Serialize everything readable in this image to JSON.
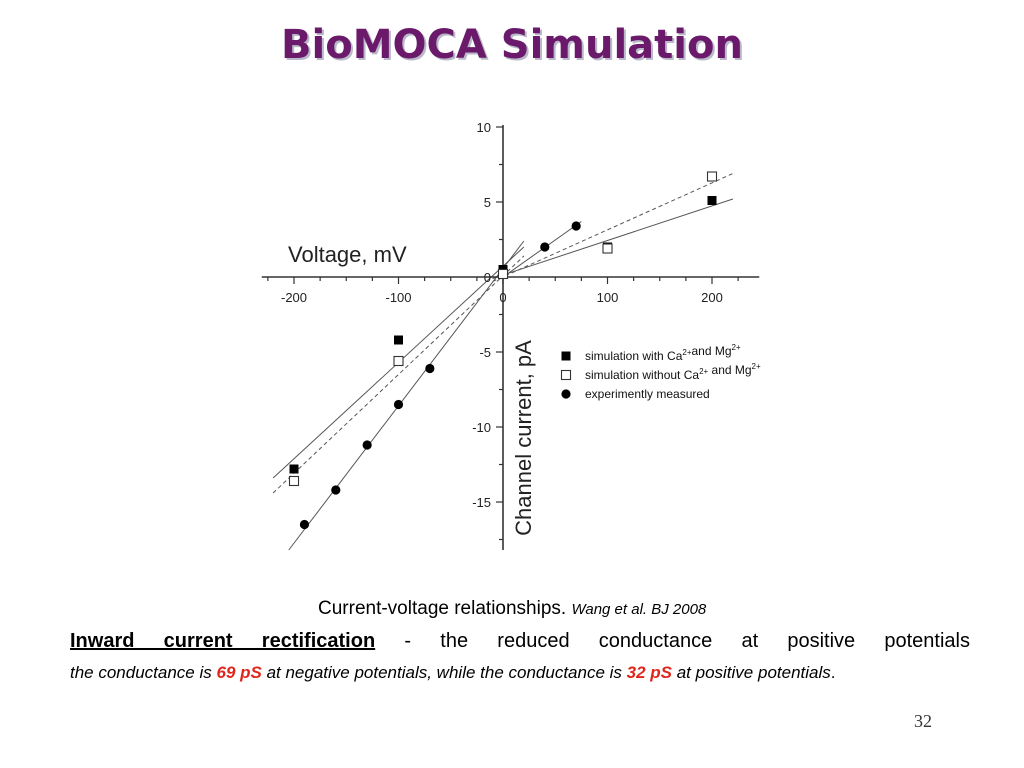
{
  "slide": {
    "title": "BioMOCA Simulation",
    "caption_main": "Current-voltage relationships.",
    "caption_cite": "Wang et al. BJ 2008",
    "rectification_heading": "Inward current rectification",
    "rectification_dash": " - ",
    "rectification_text": "the reduced conductance at positive potentials",
    "conductance_part1": "the conductance is ",
    "conductance_value_negative": "69 pS",
    "conductance_part2": " at negative potentials, while the conductance is ",
    "conductance_value_positive": "32 pS",
    "conductance_part3": " at positive potentials",
    "conductance_end": ".",
    "page_number": "32",
    "colors": {
      "title": "#6b1a6b",
      "highlight": "#e0261b"
    }
  },
  "chart_data": {
    "type": "scatter",
    "xlabel": "Voltage, mV",
    "ylabel": "Channel current, pA",
    "xlim": [
      -250,
      250
    ],
    "ylim": [
      -18,
      10
    ],
    "x_ticks": [
      -200,
      -100,
      0,
      100,
      200
    ],
    "y_ticks": [
      10,
      5,
      0,
      -5,
      -10,
      -15
    ],
    "axes_style": "cross-at-origin",
    "grid": false,
    "legend_position": "lower-right",
    "series": [
      {
        "name": "simulation with Ca2+ and Mg2+",
        "marker": "filled-square",
        "x": [
          -200,
          -100,
          0,
          100,
          200
        ],
        "y": [
          -12.8,
          -4.2,
          0.5,
          2.0,
          5.1
        ]
      },
      {
        "name": "simulation without Ca2+ and Mg2+",
        "marker": "open-square",
        "x": [
          -200,
          -100,
          0,
          100,
          200
        ],
        "y": [
          -13.6,
          -5.6,
          0.2,
          1.9,
          6.7
        ]
      },
      {
        "name": "experimently measured",
        "marker": "filled-circle",
        "x": [
          -190,
          -160,
          -130,
          -100,
          -70,
          40,
          70
        ],
        "y": [
          -16.5,
          -14.2,
          -11.2,
          -8.5,
          -6.1,
          2.0,
          3.4
        ]
      }
    ],
    "fit_lines": [
      {
        "style": "solid",
        "x": [
          -220,
          20
        ],
        "y": [
          -13.4,
          2.0
        ]
      },
      {
        "style": "dashed",
        "x": [
          -220,
          20
        ],
        "y": [
          -14.4,
          1.4
        ]
      },
      {
        "style": "solid",
        "x": [
          -205,
          20
        ],
        "y": [
          -18.2,
          2.4
        ]
      },
      {
        "style": "solid",
        "x": [
          0,
          75
        ],
        "y": [
          0.0,
          3.7
        ]
      },
      {
        "style": "solid",
        "x": [
          -10,
          220
        ],
        "y": [
          -0.1,
          5.2
        ]
      },
      {
        "style": "dashed",
        "x": [
          -10,
          220
        ],
        "y": [
          -0.3,
          6.9
        ]
      }
    ],
    "legend": [
      {
        "marker": "filled-square",
        "prefix": "simulation with Ca",
        "sup1": "2+",
        "middle": "and Mg",
        "sup2": "2+"
      },
      {
        "marker": "open-square",
        "prefix": "simulation without Ca",
        "sup1": "2+",
        "middle": " and Mg",
        "sup2": "2+"
      },
      {
        "marker": "filled-circle",
        "prefix": "experimently measured",
        "sup1": "",
        "middle": "",
        "sup2": ""
      }
    ]
  }
}
